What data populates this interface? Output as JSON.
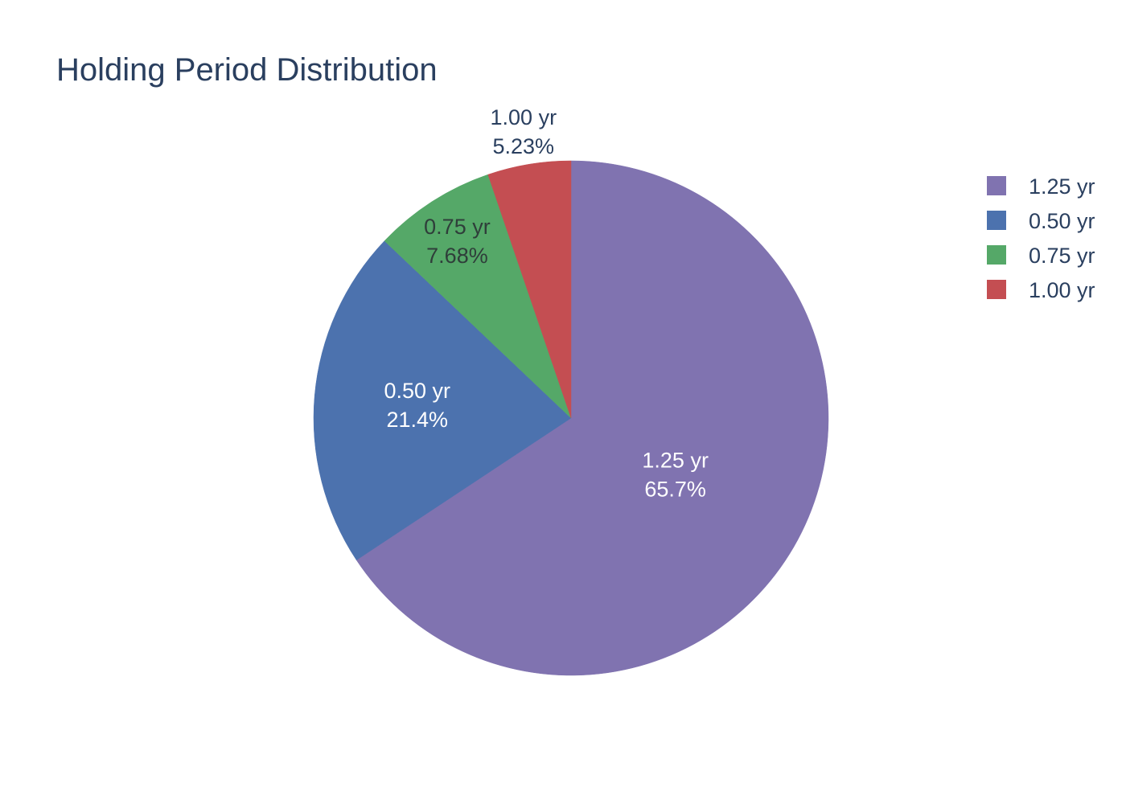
{
  "chart_data": {
    "type": "pie",
    "title": "Holding Period Distribution",
    "slices": [
      {
        "label": "1.25 yr",
        "percent_text": "65.7%",
        "value": 65.7,
        "color": "#8073b0"
      },
      {
        "label": "0.50 yr",
        "percent_text": "21.4%",
        "value": 21.4,
        "color": "#4c72ae"
      },
      {
        "label": "0.75 yr",
        "percent_text": "7.68%",
        "value": 7.68,
        "color": "#55a868"
      },
      {
        "label": "1.00 yr",
        "percent_text": "5.23%",
        "value": 5.23,
        "color": "#c44e52"
      }
    ],
    "legend": {
      "placement": "top-right",
      "items": [
        "1.25 yr",
        "0.50 yr",
        "0.75 yr",
        "1.00 yr"
      ]
    },
    "direction": "clockwise",
    "start": "top"
  }
}
